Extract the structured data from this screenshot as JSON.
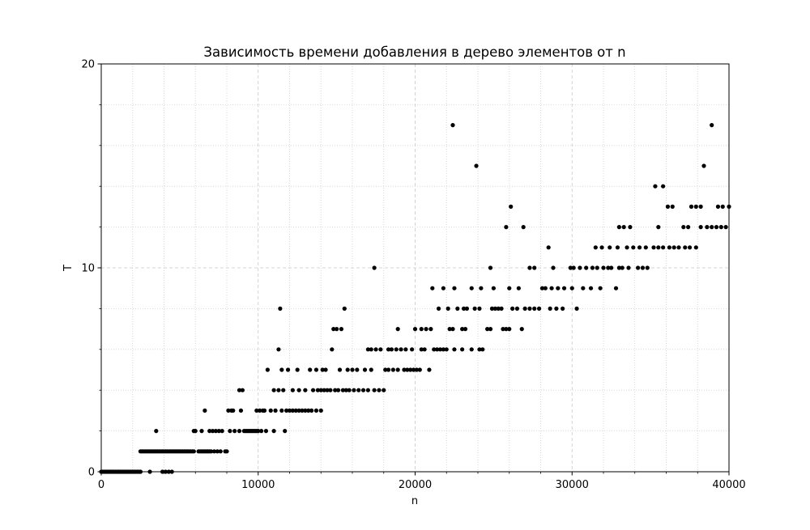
{
  "chart_data": {
    "type": "scatter",
    "title": "Зависимость времени добавления в дерево элементов от n",
    "xlabel": "n",
    "ylabel": "T",
    "xlim": [
      0,
      40000
    ],
    "ylim": [
      0,
      20
    ],
    "x_ticks": [
      0,
      10000,
      20000,
      30000,
      40000
    ],
    "y_ticks": [
      0,
      10,
      20
    ],
    "x_tick_labels": [
      "0",
      "10000",
      "20000",
      "30000",
      "40000"
    ],
    "y_tick_labels": [
      "0",
      "10",
      "20"
    ],
    "grid": true,
    "marker_color": "#000000",
    "points": [
      [
        0,
        0
      ],
      [
        100,
        0
      ],
      [
        200,
        0
      ],
      [
        300,
        0
      ],
      [
        400,
        0
      ],
      [
        500,
        0
      ],
      [
        600,
        0
      ],
      [
        700,
        0
      ],
      [
        800,
        0
      ],
      [
        900,
        0
      ],
      [
        1000,
        0
      ],
      [
        1100,
        0
      ],
      [
        1200,
        0
      ],
      [
        1300,
        0
      ],
      [
        1400,
        0
      ],
      [
        1500,
        0
      ],
      [
        1600,
        0
      ],
      [
        1700,
        0
      ],
      [
        1800,
        0
      ],
      [
        1900,
        0
      ],
      [
        2000,
        0
      ],
      [
        2100,
        0
      ],
      [
        2200,
        0
      ],
      [
        2300,
        0
      ],
      [
        2400,
        0
      ],
      [
        2500,
        0
      ],
      [
        3100,
        0
      ],
      [
        3900,
        0
      ],
      [
        4100,
        0
      ],
      [
        4300,
        0
      ],
      [
        4500,
        0
      ],
      [
        2500,
        1
      ],
      [
        2600,
        1
      ],
      [
        2700,
        1
      ],
      [
        2800,
        1
      ],
      [
        2900,
        1
      ],
      [
        3000,
        1
      ],
      [
        3100,
        1
      ],
      [
        3200,
        1
      ],
      [
        3300,
        1
      ],
      [
        3400,
        1
      ],
      [
        3500,
        1
      ],
      [
        3600,
        1
      ],
      [
        3700,
        1
      ],
      [
        3800,
        1
      ],
      [
        3900,
        1
      ],
      [
        4000,
        1
      ],
      [
        4100,
        1
      ],
      [
        4200,
        1
      ],
      [
        4300,
        1
      ],
      [
        4400,
        1
      ],
      [
        4500,
        1
      ],
      [
        4600,
        1
      ],
      [
        4700,
        1
      ],
      [
        4800,
        1
      ],
      [
        4900,
        1
      ],
      [
        5000,
        1
      ],
      [
        5100,
        1
      ],
      [
        5200,
        1
      ],
      [
        5300,
        1
      ],
      [
        5400,
        1
      ],
      [
        5500,
        1
      ],
      [
        5600,
        1
      ],
      [
        5700,
        1
      ],
      [
        5800,
        1
      ],
      [
        5900,
        1
      ],
      [
        6200,
        1
      ],
      [
        6300,
        1
      ],
      [
        6400,
        1
      ],
      [
        6500,
        1
      ],
      [
        6600,
        1
      ],
      [
        6700,
        1
      ],
      [
        6800,
        1
      ],
      [
        6900,
        1
      ],
      [
        7000,
        1
      ],
      [
        7200,
        1
      ],
      [
        7400,
        1
      ],
      [
        7600,
        1
      ],
      [
        7900,
        1
      ],
      [
        8000,
        1
      ],
      [
        3500,
        2
      ],
      [
        5900,
        2
      ],
      [
        6000,
        2
      ],
      [
        6400,
        2
      ],
      [
        6900,
        2
      ],
      [
        7100,
        2
      ],
      [
        7300,
        2
      ],
      [
        7500,
        2
      ],
      [
        7700,
        2
      ],
      [
        8200,
        2
      ],
      [
        8500,
        2
      ],
      [
        8800,
        2
      ],
      [
        9100,
        2
      ],
      [
        9200,
        2
      ],
      [
        9300,
        2
      ],
      [
        9400,
        2
      ],
      [
        9500,
        2
      ],
      [
        9600,
        2
      ],
      [
        9700,
        2
      ],
      [
        9800,
        2
      ],
      [
        9900,
        2
      ],
      [
        10000,
        2
      ],
      [
        10200,
        2
      ],
      [
        10500,
        2
      ],
      [
        11000,
        2
      ],
      [
        11700,
        2
      ],
      [
        6600,
        3
      ],
      [
        8100,
        3
      ],
      [
        8300,
        3
      ],
      [
        8400,
        3
      ],
      [
        8900,
        3
      ],
      [
        9900,
        3
      ],
      [
        10100,
        3
      ],
      [
        10300,
        3
      ],
      [
        10400,
        3
      ],
      [
        10800,
        3
      ],
      [
        11100,
        3
      ],
      [
        11500,
        3
      ],
      [
        11800,
        3
      ],
      [
        12000,
        3
      ],
      [
        12200,
        3
      ],
      [
        12400,
        3
      ],
      [
        12600,
        3
      ],
      [
        12800,
        3
      ],
      [
        13000,
        3
      ],
      [
        13200,
        3
      ],
      [
        13400,
        3
      ],
      [
        13700,
        3
      ],
      [
        14000,
        3
      ],
      [
        8800,
        4
      ],
      [
        9000,
        4
      ],
      [
        11000,
        4
      ],
      [
        11300,
        4
      ],
      [
        11600,
        4
      ],
      [
        12200,
        4
      ],
      [
        12600,
        4
      ],
      [
        13000,
        4
      ],
      [
        13500,
        4
      ],
      [
        13800,
        4
      ],
      [
        14000,
        4
      ],
      [
        14200,
        4
      ],
      [
        14400,
        4
      ],
      [
        14600,
        4
      ],
      [
        14900,
        4
      ],
      [
        15100,
        4
      ],
      [
        15400,
        4
      ],
      [
        15600,
        4
      ],
      [
        15800,
        4
      ],
      [
        16100,
        4
      ],
      [
        16400,
        4
      ],
      [
        16700,
        4
      ],
      [
        17000,
        4
      ],
      [
        17400,
        4
      ],
      [
        17700,
        4
      ],
      [
        18000,
        4
      ],
      [
        10600,
        5
      ],
      [
        11500,
        5
      ],
      [
        11900,
        5
      ],
      [
        12500,
        5
      ],
      [
        13300,
        5
      ],
      [
        13700,
        5
      ],
      [
        14100,
        5
      ],
      [
        14300,
        5
      ],
      [
        15200,
        5
      ],
      [
        15700,
        5
      ],
      [
        16000,
        5
      ],
      [
        16300,
        5
      ],
      [
        16800,
        5
      ],
      [
        17200,
        5
      ],
      [
        18100,
        5
      ],
      [
        18300,
        5
      ],
      [
        18600,
        5
      ],
      [
        18900,
        5
      ],
      [
        19300,
        5
      ],
      [
        19500,
        5
      ],
      [
        19700,
        5
      ],
      [
        19900,
        5
      ],
      [
        20100,
        5
      ],
      [
        20300,
        5
      ],
      [
        20900,
        5
      ],
      [
        11300,
        6
      ],
      [
        14700,
        6
      ],
      [
        17000,
        6
      ],
      [
        17200,
        6
      ],
      [
        17500,
        6
      ],
      [
        17800,
        6
      ],
      [
        18300,
        6
      ],
      [
        18500,
        6
      ],
      [
        18800,
        6
      ],
      [
        19100,
        6
      ],
      [
        19400,
        6
      ],
      [
        19800,
        6
      ],
      [
        20400,
        6
      ],
      [
        20600,
        6
      ],
      [
        21200,
        6
      ],
      [
        21400,
        6
      ],
      [
        21600,
        6
      ],
      [
        21800,
        6
      ],
      [
        22000,
        6
      ],
      [
        22500,
        6
      ],
      [
        23000,
        6
      ],
      [
        23600,
        6
      ],
      [
        24100,
        6
      ],
      [
        24300,
        6
      ],
      [
        14800,
        7
      ],
      [
        15000,
        7
      ],
      [
        15300,
        7
      ],
      [
        18900,
        7
      ],
      [
        20000,
        7
      ],
      [
        20400,
        7
      ],
      [
        20700,
        7
      ],
      [
        21000,
        7
      ],
      [
        22200,
        7
      ],
      [
        22400,
        7
      ],
      [
        23000,
        7
      ],
      [
        23200,
        7
      ],
      [
        24600,
        7
      ],
      [
        24800,
        7
      ],
      [
        25600,
        7
      ],
      [
        25800,
        7
      ],
      [
        26000,
        7
      ],
      [
        26800,
        7
      ],
      [
        11400,
        8
      ],
      [
        15500,
        8
      ],
      [
        21500,
        8
      ],
      [
        22100,
        8
      ],
      [
        22700,
        8
      ],
      [
        23100,
        8
      ],
      [
        23300,
        8
      ],
      [
        23800,
        8
      ],
      [
        24100,
        8
      ],
      [
        24900,
        8
      ],
      [
        25100,
        8
      ],
      [
        25300,
        8
      ],
      [
        25500,
        8
      ],
      [
        26200,
        8
      ],
      [
        26500,
        8
      ],
      [
        27000,
        8
      ],
      [
        27300,
        8
      ],
      [
        27600,
        8
      ],
      [
        27900,
        8
      ],
      [
        28600,
        8
      ],
      [
        29000,
        8
      ],
      [
        29400,
        8
      ],
      [
        30300,
        8
      ],
      [
        21100,
        9
      ],
      [
        21800,
        9
      ],
      [
        22500,
        9
      ],
      [
        23600,
        9
      ],
      [
        24200,
        9
      ],
      [
        25000,
        9
      ],
      [
        26000,
        9
      ],
      [
        26600,
        9
      ],
      [
        28100,
        9
      ],
      [
        28300,
        9
      ],
      [
        28700,
        9
      ],
      [
        29100,
        9
      ],
      [
        29500,
        9
      ],
      [
        30000,
        9
      ],
      [
        30700,
        9
      ],
      [
        31200,
        9
      ],
      [
        31800,
        9
      ],
      [
        32800,
        9
      ],
      [
        17400,
        10
      ],
      [
        24800,
        10
      ],
      [
        27300,
        10
      ],
      [
        27600,
        10
      ],
      [
        28800,
        10
      ],
      [
        29900,
        10
      ],
      [
        30100,
        10
      ],
      [
        30500,
        10
      ],
      [
        30900,
        10
      ],
      [
        31300,
        10
      ],
      [
        31600,
        10
      ],
      [
        32000,
        10
      ],
      [
        32300,
        10
      ],
      [
        32500,
        10
      ],
      [
        33000,
        10
      ],
      [
        33200,
        10
      ],
      [
        33600,
        10
      ],
      [
        34200,
        10
      ],
      [
        34500,
        10
      ],
      [
        34800,
        10
      ],
      [
        28500,
        11
      ],
      [
        31500,
        11
      ],
      [
        31900,
        11
      ],
      [
        32400,
        11
      ],
      [
        32900,
        11
      ],
      [
        33500,
        11
      ],
      [
        33900,
        11
      ],
      [
        34300,
        11
      ],
      [
        34700,
        11
      ],
      [
        35200,
        11
      ],
      [
        35500,
        11
      ],
      [
        35800,
        11
      ],
      [
        36200,
        11
      ],
      [
        36500,
        11
      ],
      [
        36800,
        11
      ],
      [
        37200,
        11
      ],
      [
        37500,
        11
      ],
      [
        37900,
        11
      ],
      [
        25800,
        12
      ],
      [
        26900,
        12
      ],
      [
        33000,
        12
      ],
      [
        33300,
        12
      ],
      [
        33700,
        12
      ],
      [
        35500,
        12
      ],
      [
        37100,
        12
      ],
      [
        37400,
        12
      ],
      [
        38200,
        12
      ],
      [
        38600,
        12
      ],
      [
        38900,
        12
      ],
      [
        39200,
        12
      ],
      [
        39500,
        12
      ],
      [
        39800,
        12
      ],
      [
        26100,
        13
      ],
      [
        36100,
        13
      ],
      [
        36400,
        13
      ],
      [
        37600,
        13
      ],
      [
        37900,
        13
      ],
      [
        38200,
        13
      ],
      [
        39300,
        13
      ],
      [
        39600,
        13
      ],
      [
        40000,
        13
      ],
      [
        35300,
        14
      ],
      [
        35800,
        14
      ],
      [
        23900,
        15
      ],
      [
        38400,
        15
      ],
      [
        22400,
        17
      ],
      [
        38900,
        17
      ]
    ]
  }
}
